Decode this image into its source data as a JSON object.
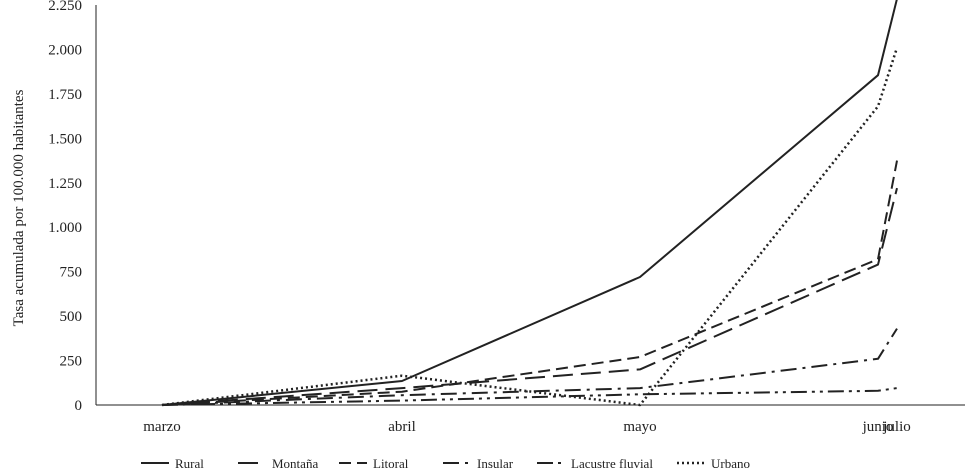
{
  "chart_data": {
    "type": "line",
    "ylabel": "Tasa acumulada por 100.000 habitantes",
    "xlabel": "",
    "categories": [
      "marzo",
      "abril",
      "mayo",
      "junio",
      "julio"
    ],
    "ylim": [
      0,
      2250
    ],
    "yticks": [
      0,
      250,
      500,
      750,
      1000,
      1250,
      1500,
      1750,
      2000,
      2250
    ],
    "ytick_labels": [
      "0",
      "250",
      "500",
      "750",
      "1.000",
      "1.250",
      "1.500",
      "1.750",
      "2.000",
      "2.250"
    ],
    "grid": false,
    "legend_position": "bottom",
    "series": [
      {
        "name": "Rural",
        "values": [
          0,
          135,
          720,
          1855,
          2285
        ],
        "style": "solid"
      },
      {
        "name": "Montaña",
        "values": [
          0,
          95,
          200,
          790,
          1220
        ],
        "style": "longdash"
      },
      {
        "name": "Litoral",
        "values": [
          0,
          75,
          270,
          820,
          1375
        ],
        "style": "dash"
      },
      {
        "name": "Insular",
        "values": [
          0,
          55,
          95,
          260,
          430
        ],
        "style": "dashdot"
      },
      {
        "name": "Lacustre fluvial",
        "values": [
          0,
          25,
          60,
          80,
          95
        ],
        "style": "dashdotdot"
      },
      {
        "name": "Urbano",
        "values": [
          0,
          165,
          0,
          1680,
          2010
        ],
        "style": "dotted"
      }
    ]
  }
}
